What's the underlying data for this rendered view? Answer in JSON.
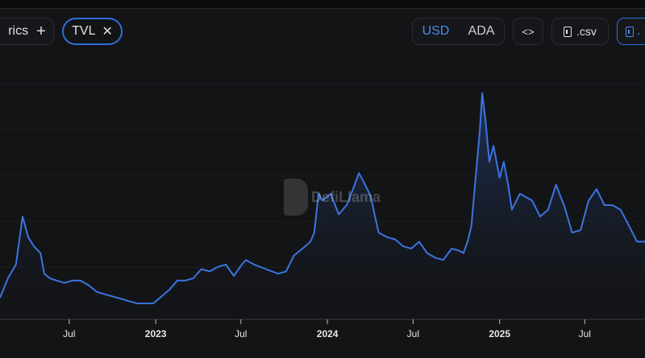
{
  "toolbar": {
    "metrics_label": "rics",
    "metrics_add_icon": "plus-icon",
    "tvl_chip": "TVL",
    "tvl_remove_icon": "close-icon",
    "currency_options": [
      "USD",
      "ADA"
    ],
    "currency_selected": "USD",
    "embed_label": "<>",
    "csv_label": ".csv",
    "png_label": "."
  },
  "watermark": "DefiLlama",
  "colors": {
    "line": "#3b74e0",
    "accent": "#2f6fdc",
    "background": "#131416"
  },
  "chart_data": {
    "type": "area",
    "title": "",
    "xlabel": "",
    "ylabel": "",
    "xlim": [
      "2022-02-04",
      "2025-11-06"
    ],
    "ylim": [
      0,
      100
    ],
    "x_ticks": [
      {
        "date": "2022-07-01",
        "label": "Jul"
      },
      {
        "date": "2023-01-01",
        "label": "2023"
      },
      {
        "date": "2023-07-01",
        "label": "Jul"
      },
      {
        "date": "2024-01-01",
        "label": "2024"
      },
      {
        "date": "2024-07-01",
        "label": "Jul"
      },
      {
        "date": "2025-01-01",
        "label": "2025"
      },
      {
        "date": "2025-07-01",
        "label": "Jul"
      }
    ],
    "grid": true,
    "series": [
      {
        "x": [
          "2022-02-04",
          "2022-02-21",
          "2022-03-10",
          "2022-03-24",
          "2022-04-05",
          "2022-04-17",
          "2022-05-01",
          "2022-05-09",
          "2022-05-21",
          "2022-06-04",
          "2022-06-21",
          "2022-07-08",
          "2022-07-25",
          "2022-08-11",
          "2022-08-29",
          "2022-09-15",
          "2022-10-02",
          "2022-10-19",
          "2022-11-05",
          "2022-11-22",
          "2022-12-09",
          "2022-12-27",
          "2023-01-13",
          "2023-01-30",
          "2023-02-16",
          "2023-03-05",
          "2023-03-22",
          "2023-04-08",
          "2023-04-26",
          "2023-05-13",
          "2023-05-30",
          "2023-06-16",
          "2023-07-03",
          "2023-07-12",
          "2023-07-29",
          "2023-08-23",
          "2023-09-18",
          "2023-10-05",
          "2023-10-22",
          "2023-11-09",
          "2023-11-26",
          "2023-12-04",
          "2023-12-13",
          "2023-12-21",
          "2024-01-08",
          "2024-01-25",
          "2024-02-11",
          "2024-02-28",
          "2024-03-08",
          "2024-03-16",
          "2024-04-02",
          "2024-04-11",
          "2024-04-19",
          "2024-05-07",
          "2024-05-24",
          "2024-06-10",
          "2024-06-27",
          "2024-07-14",
          "2024-07-31",
          "2024-08-17",
          "2024-09-03",
          "2024-09-21",
          "2024-10-08",
          "2024-10-16",
          "2024-10-25",
          "2024-11-02",
          "2024-11-11",
          "2024-11-20",
          "2024-11-25",
          "2024-12-02",
          "2024-12-10",
          "2024-12-19",
          "2025-01-01",
          "2025-01-10",
          "2025-01-19",
          "2025-01-27",
          "2025-02-13",
          "2025-02-22",
          "2025-03-11",
          "2025-03-28",
          "2025-04-14",
          "2025-05-01",
          "2025-05-10",
          "2025-05-18",
          "2025-06-04",
          "2025-06-22",
          "2025-07-09",
          "2025-07-26",
          "2025-08-12",
          "2025-08-29",
          "2025-09-15",
          "2025-10-03",
          "2025-10-20",
          "2025-11-06"
        ],
        "y": [
          9.5,
          18,
          24,
          45,
          36,
          32,
          29,
          20,
          18,
          17,
          16,
          17,
          17,
          15,
          12,
          11,
          10,
          9,
          8,
          7,
          7,
          7,
          10,
          13,
          17,
          17,
          18,
          22,
          21,
          23,
          24,
          19,
          24,
          26,
          24,
          22,
          20,
          21,
          28,
          31,
          34,
          38,
          55,
          52,
          55,
          46,
          50,
          59,
          64,
          61,
          54,
          45,
          38,
          36,
          35,
          32,
          31,
          34,
          29,
          27,
          26,
          31,
          30,
          29,
          34,
          41,
          62,
          83,
          99,
          87,
          69,
          76,
          62,
          69,
          59,
          48,
          55,
          54,
          52,
          45,
          48,
          59,
          54,
          50,
          38,
          39,
          52,
          57,
          50,
          50,
          48,
          41,
          34,
          34
        ]
      }
    ]
  }
}
